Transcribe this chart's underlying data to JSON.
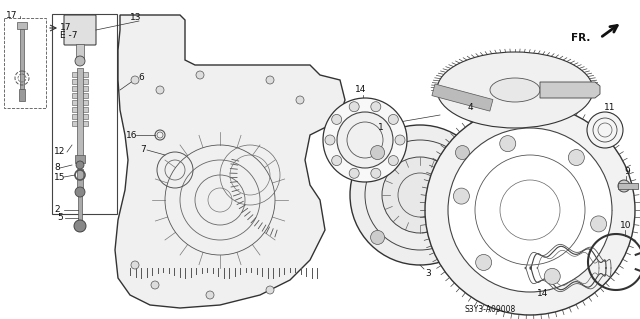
{
  "bg_color": "#ffffff",
  "fig_width": 6.4,
  "fig_height": 3.19,
  "diagram_code": "S3Y3-A09008",
  "lc": "#333333",
  "fs": 6.5
}
